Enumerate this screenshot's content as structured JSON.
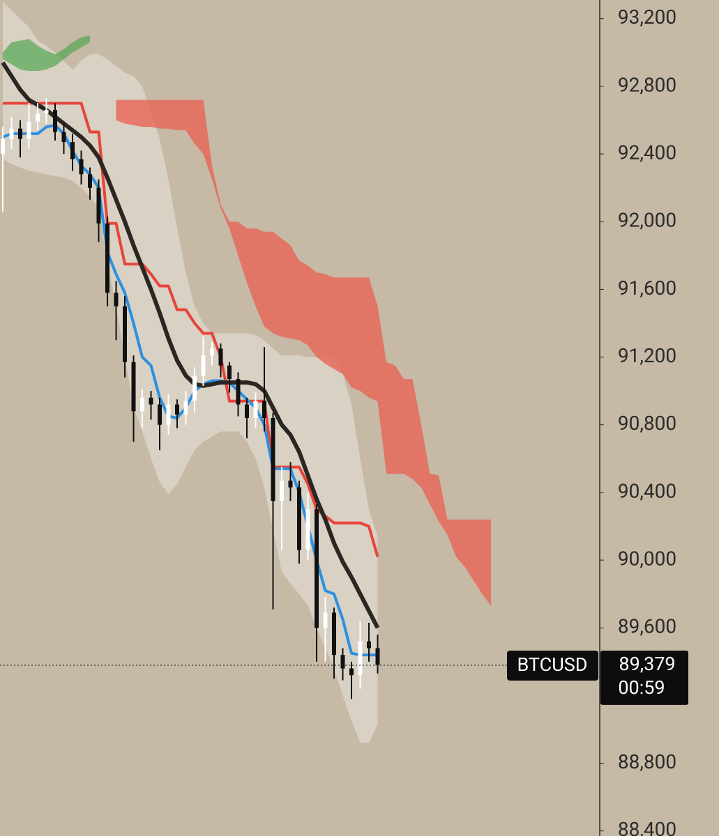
{
  "chart_data": {
    "type": "candlestick",
    "symbol": "BTCUSD",
    "last_price": {
      "value": 89379,
      "label": "89,379"
    },
    "countdown": "00:59",
    "ylim": [
      88370,
      93310
    ],
    "yticks": [
      {
        "value": 88400,
        "label": "88,400"
      },
      {
        "value": 88800,
        "label": "88,800"
      },
      {
        "value": 89200,
        "label": "89,200"
      },
      {
        "value": 89600,
        "label": "89,600"
      },
      {
        "value": 90000,
        "label": "90,000"
      },
      {
        "value": 90400,
        "label": "90,400"
      },
      {
        "value": 90800,
        "label": "90,800"
      },
      {
        "value": 91200,
        "label": "91,200"
      },
      {
        "value": 91600,
        "label": "91,600"
      },
      {
        "value": 92000,
        "label": "92,000"
      },
      {
        "value": 92400,
        "label": "92,400"
      },
      {
        "value": 92800,
        "label": "92,800"
      },
      {
        "value": 93200,
        "label": "93,200"
      }
    ],
    "up_color": "#ffffff",
    "down_color": "#111111",
    "candles": {
      "open": [
        92400,
        92490,
        92550,
        92490,
        92590,
        92640,
        92660,
        92530,
        92470,
        92370,
        92280,
        92200,
        91990,
        91580,
        91500,
        91170,
        90880,
        90960,
        90920,
        90800,
        90920,
        90860,
        90940,
        91090,
        91210,
        91250,
        91150,
        91070,
        90920,
        90840,
        90940,
        90840,
        90350,
        90470,
        90430,
        90060,
        90300,
        89600,
        89690,
        89440,
        89360,
        89320,
        89520,
        89480
      ],
      "high": [
        92560,
        92620,
        92600,
        92700,
        92700,
        92730,
        92700,
        92580,
        92520,
        92420,
        92320,
        92250,
        92030,
        91650,
        91560,
        91210,
        91010,
        91000,
        90960,
        90980,
        90950,
        91000,
        91140,
        91320,
        91290,
        91280,
        91170,
        91110,
        90960,
        90990,
        91260,
        90870,
        90550,
        90580,
        90470,
        90400,
        90330,
        89780,
        89720,
        89480,
        89400,
        89640,
        89630,
        89560
      ],
      "low": [
        92060,
        92430,
        92380,
        92430,
        92540,
        92580,
        92480,
        92400,
        92300,
        92220,
        92130,
        91880,
        91500,
        91300,
        91080,
        90700,
        90780,
        90830,
        90650,
        90740,
        90780,
        90800,
        90870,
        91030,
        91150,
        91080,
        90990,
        90850,
        90720,
        90780,
        90760,
        89710,
        90060,
        90350,
        89980,
        90000,
        89400,
        89400,
        89300,
        89290,
        89180,
        89240,
        89400,
        89330
      ],
      "close": [
        92490,
        92550,
        92490,
        92590,
        92640,
        92660,
        92530,
        92470,
        92370,
        92280,
        92200,
        91990,
        91580,
        91500,
        91170,
        90880,
        90960,
        90920,
        90800,
        90920,
        90860,
        90940,
        91090,
        91210,
        91250,
        91150,
        91070,
        90920,
        90840,
        90940,
        90840,
        90350,
        90470,
        90430,
        90060,
        90300,
        89600,
        89690,
        89440,
        89360,
        89320,
        89520,
        89480,
        89380
      ]
    },
    "bands": [
      {
        "color": "rgba(232,229,222,0.55)",
        "upper": [
          93300,
          93250,
          93200,
          93150,
          93070,
          93040,
          93000,
          92950,
          92900,
          92950,
          92990,
          92990,
          92960,
          92920,
          92880,
          92860,
          92800,
          92650,
          92490,
          92250,
          91960,
          91700,
          91500,
          91400,
          91340,
          91340,
          91340,
          91340,
          91340,
          91330,
          91300,
          91250,
          91210,
          91210,
          91210,
          91200,
          91200,
          91200,
          91190,
          91100,
          90920,
          90600,
          90300,
          90140
        ],
        "lower": [
          92370,
          92340,
          92320,
          92300,
          92290,
          92280,
          92270,
          92260,
          92240,
          92200,
          92150,
          92080,
          91750,
          91500,
          91200,
          90900,
          90760,
          90600,
          90460,
          90390,
          90450,
          90550,
          90650,
          90700,
          90730,
          90760,
          90760,
          90760,
          90700,
          90600,
          90430,
          90180,
          89930,
          89860,
          89800,
          89730,
          89600,
          89480,
          89360,
          89200,
          89050,
          88920,
          88920,
          89030
        ]
      },
      {
        "color": "rgba(76,165,76,0.65)",
        "upper": [
          93000,
          93060,
          93070,
          93080,
          93040,
          93010,
          92990,
          93020,
          93060,
          93090,
          93100
        ],
        "lower": [
          92960,
          92930,
          92900,
          92890,
          92890,
          92900,
          92920,
          92960,
          93000,
          93030,
          93060
        ]
      },
      {
        "color": "rgba(232,98,84,0.78)",
        "upper": [
          null,
          null,
          null,
          null,
          null,
          null,
          null,
          null,
          null,
          null,
          null,
          null,
          null,
          92720,
          92720,
          92720,
          92720,
          92720,
          92720,
          92720,
          92720,
          92720,
          92720,
          92720,
          92330,
          92100,
          92000,
          92000,
          91960,
          91960,
          91940,
          91940,
          91900,
          91860,
          91770,
          91740,
          91700,
          91690,
          91670,
          91670,
          91670,
          91670,
          91670,
          91500,
          91170,
          91150,
          91070,
          91070,
          90800,
          90510,
          90500,
          90240,
          90240,
          90240,
          90240,
          90240,
          90240
        ],
        "lower": [
          null,
          null,
          null,
          null,
          null,
          null,
          null,
          null,
          null,
          null,
          null,
          null,
          null,
          92600,
          92580,
          92570,
          92560,
          92560,
          92550,
          92550,
          92540,
          92540,
          92460,
          92400,
          92250,
          92080,
          91960,
          91800,
          91640,
          91500,
          91380,
          91340,
          91320,
          91310,
          91300,
          91270,
          91200,
          91160,
          91130,
          91100,
          91020,
          91000,
          90960,
          90940,
          90510,
          90510,
          90510,
          90480,
          90430,
          90330,
          90230,
          90150,
          90020,
          89960,
          89880,
          89800,
          89730
        ]
      }
    ],
    "lines": [
      {
        "color": "#e8433a",
        "values": [
          92700,
          92700,
          92700,
          92700,
          92700,
          92700,
          92700,
          92700,
          92700,
          92700,
          92530,
          92530,
          91990,
          91990,
          91750,
          91750,
          91750,
          91690,
          91620,
          91620,
          91480,
          91480,
          91400,
          91340,
          91340,
          91200,
          90940,
          90940,
          90940,
          90940,
          90940,
          90550,
          90550,
          90550,
          90550,
          90450,
          90300,
          90260,
          90220,
          90220,
          90220,
          90220,
          90200,
          90020
        ]
      },
      {
        "color": "#2b90e0",
        "values": [
          92500,
          92520,
          92520,
          92520,
          92520,
          92560,
          92570,
          92520,
          92420,
          92330,
          92280,
          92200,
          91820,
          91690,
          91580,
          91400,
          91200,
          91150,
          90960,
          90850,
          90840,
          90900,
          91000,
          91040,
          91060,
          91060,
          91050,
          91000,
          90950,
          90900,
          90800,
          90540,
          90540,
          90540,
          90400,
          90200,
          90000,
          89820,
          89800,
          89650,
          89450,
          89440,
          89440,
          89440
        ]
      },
      {
        "color": "#2a2622",
        "values": [
          92940,
          92860,
          92780,
          92720,
          92690,
          92660,
          92620,
          92580,
          92540,
          92500,
          92450,
          92380,
          92260,
          92130,
          92000,
          91860,
          91730,
          91600,
          91460,
          91310,
          91180,
          91090,
          91040,
          91030,
          91040,
          91050,
          91050,
          91050,
          91050,
          91040,
          91000,
          90900,
          90800,
          90740,
          90640,
          90500,
          90360,
          90240,
          90100,
          89990,
          89900,
          89800,
          89700,
          89600
        ]
      }
    ]
  }
}
